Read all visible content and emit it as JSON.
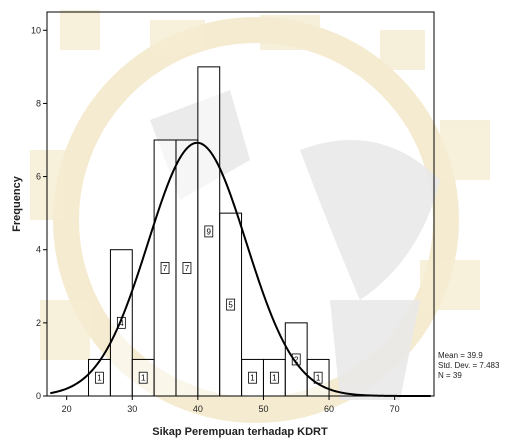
{
  "chart_data": {
    "type": "bar",
    "xlabel": "Sikap Perempuan terhadap KDRT",
    "ylabel": "Frequency",
    "xlim": [
      17,
      76
    ],
    "ylim": [
      0,
      10.5
    ],
    "x_ticks": [
      20,
      30,
      40,
      50,
      60,
      70
    ],
    "y_ticks": [
      0,
      2,
      4,
      6,
      8,
      10
    ],
    "bin_width": 3.33,
    "bins": [
      {
        "start": 23.33,
        "count": 1
      },
      {
        "start": 26.67,
        "count": 4
      },
      {
        "start": 30.0,
        "count": 1
      },
      {
        "start": 33.33,
        "count": 7
      },
      {
        "start": 36.67,
        "count": 7
      },
      {
        "start": 40.0,
        "count": 9
      },
      {
        "start": 43.33,
        "count": 5
      },
      {
        "start": 46.67,
        "count": 1
      },
      {
        "start": 50.0,
        "count": 1
      },
      {
        "start": 53.33,
        "count": 2
      },
      {
        "start": 56.67,
        "count": 1
      }
    ],
    "normal_curve": {
      "mean": 39.9,
      "std": 7.483,
      "n": 39
    },
    "stats": {
      "mean": "Mean = 39.9",
      "std": "Std. Dev. = 7.483",
      "n": "N = 39"
    },
    "grid": false,
    "watermark_color": "#f2e6c4"
  }
}
